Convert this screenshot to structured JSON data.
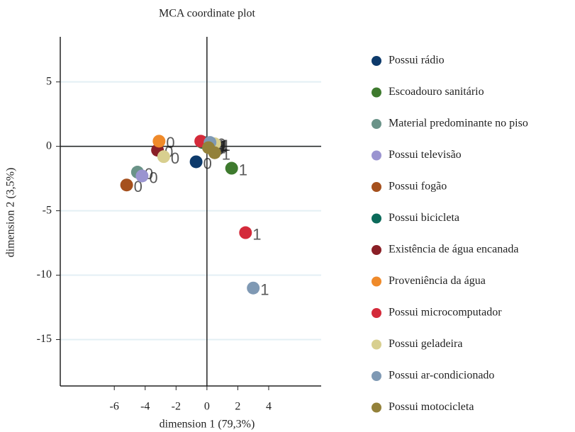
{
  "chart_data": {
    "type": "scatter",
    "title": "MCA coordinate plot",
    "x_label": "dimension 1 (79,3%)",
    "y_label": "dimension 2 (3,5%)",
    "xlim": [
      -9.5,
      7.4
    ],
    "ylim": [
      -18.6,
      8.5
    ],
    "xticks": [
      -6,
      -4,
      -2,
      0,
      2,
      4
    ],
    "yticks": [
      5,
      0,
      -5,
      -10,
      -15
    ],
    "grid": true,
    "legend": "right",
    "point_labels": [
      "0",
      "1"
    ],
    "series": [
      {
        "name": "Possui rádio",
        "color": "#0d3a6b",
        "x": [
          -0.7,
          0.3
        ],
        "y": [
          -1.2,
          0.1
        ]
      },
      {
        "name": "Escoadouro sanitário",
        "color": "#3e7a2e",
        "x": [
          -0.3,
          1.6
        ],
        "y": [
          0.3,
          -1.7
        ]
      },
      {
        "name": "Material predominante no piso",
        "color": "#6a9388",
        "x": [
          -4.5,
          0.4
        ],
        "y": [
          -2.0,
          0.2
        ]
      },
      {
        "name": "Possui televisão",
        "color": "#9a94d0",
        "x": [
          -4.2,
          0.3
        ],
        "y": [
          -2.3,
          0.1
        ]
      },
      {
        "name": "Possui fogão",
        "color": "#a5501d",
        "x": [
          -5.2,
          0.1
        ],
        "y": [
          -3.0,
          0.1
        ]
      },
      {
        "name": "Possui bicicleta",
        "color": "#0b6a5a",
        "x": [
          -0.2,
          0.2
        ],
        "y": [
          0.3,
          0.2
        ]
      },
      {
        "name": "Existência de água encanada",
        "color": "#8a1f26",
        "x": [
          -3.2,
          0.3
        ],
        "y": [
          -0.3,
          0.1
        ]
      },
      {
        "name": "Proveniência da água",
        "color": "#ef8a2a",
        "x": [
          -3.1,
          0.2
        ],
        "y": [
          0.4,
          0.0
        ]
      },
      {
        "name": "Possui microcomputador",
        "color": "#d42a3a",
        "x": [
          -0.4,
          2.5
        ],
        "y": [
          0.4,
          -6.7
        ]
      },
      {
        "name": "Possui geladeira",
        "color": "#d8cf8f",
        "x": [
          -2.8,
          0.5
        ],
        "y": [
          -0.8,
          0.2
        ]
      },
      {
        "name": "Possui ar-condicionado",
        "color": "#7f99b4",
        "x": [
          0.2,
          3.0
        ],
        "y": [
          0.3,
          -11.0
        ]
      },
      {
        "name": "Possui motocicleta",
        "color": "#93813a",
        "x": [
          0.1,
          0.5
        ],
        "y": [
          -0.1,
          -0.5
        ]
      }
    ]
  }
}
